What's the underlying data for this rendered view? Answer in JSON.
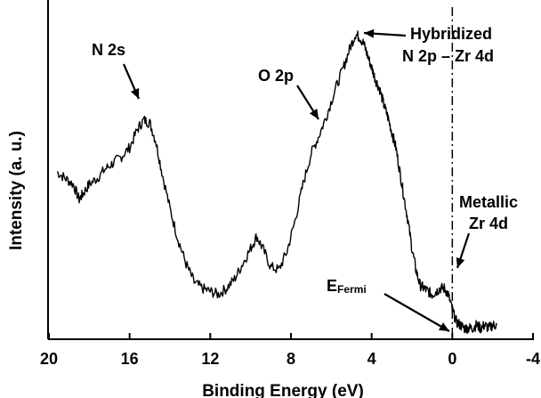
{
  "chart_data": {
    "type": "line",
    "title": "",
    "xlabel": "Binding Energy (eV)",
    "ylabel": "Intensity (a. u.)",
    "xlim": [
      20,
      -4
    ],
    "ylim": [
      0,
      1
    ],
    "x_reversed": true,
    "y_tick_labels": false,
    "xticks": [
      20,
      16,
      12,
      8,
      4,
      0,
      -4
    ],
    "xtick_labels": [
      "20",
      "16",
      "12",
      "8",
      "4",
      "0",
      "-4"
    ],
    "grid": false,
    "line_color": "#000000",
    "series": [
      {
        "name": "",
        "x": [
          19.6,
          19.2,
          18.8,
          18.5,
          18.3,
          18.0,
          17.6,
          17.2,
          16.8,
          16.4,
          16.0,
          15.6,
          15.3,
          15.0,
          14.7,
          14.4,
          14.0,
          13.6,
          13.2,
          12.8,
          12.4,
          12.0,
          11.6,
          11.2,
          10.8,
          10.4,
          10.0,
          9.7,
          9.4,
          9.0,
          8.6,
          8.2,
          7.8,
          7.4,
          7.0,
          6.6,
          6.2,
          5.8,
          5.4,
          5.1,
          4.8,
          4.6,
          4.4,
          4.2,
          4.0,
          3.8,
          3.6,
          3.4,
          3.2,
          3.0,
          2.8,
          2.6,
          2.4,
          2.2,
          2.0,
          1.8,
          1.6,
          1.4,
          1.2,
          1.0,
          0.8,
          0.6,
          0.4,
          0.2,
          0.0,
          -0.2,
          -0.4,
          -0.6,
          -0.8,
          -1.0,
          -1.2,
          -1.4,
          -1.6,
          -1.8,
          -2.0,
          -2.2
        ],
        "y": [
          0.52,
          0.5,
          0.48,
          0.43,
          0.45,
          0.48,
          0.5,
          0.53,
          0.55,
          0.57,
          0.6,
          0.66,
          0.69,
          0.68,
          0.62,
          0.52,
          0.4,
          0.3,
          0.22,
          0.16,
          0.14,
          0.13,
          0.12,
          0.14,
          0.17,
          0.22,
          0.27,
          0.31,
          0.27,
          0.21,
          0.2,
          0.26,
          0.36,
          0.48,
          0.58,
          0.64,
          0.71,
          0.79,
          0.86,
          0.92,
          0.97,
          0.96,
          0.94,
          0.9,
          0.86,
          0.82,
          0.79,
          0.74,
          0.7,
          0.65,
          0.6,
          0.52,
          0.44,
          0.36,
          0.27,
          0.2,
          0.15,
          0.14,
          0.13,
          0.12,
          0.13,
          0.14,
          0.14,
          0.12,
          0.07,
          0.03,
          0.02,
          0.01,
          0.01,
          0.01,
          0.02,
          0.01,
          0.02,
          0.01,
          0.02,
          0.02
        ]
      }
    ],
    "annotations": [
      {
        "text": "N 2s",
        "x": 15.1,
        "y": 0.68
      },
      {
        "text": "O 2p",
        "x": 6.6,
        "y": 0.64
      },
      {
        "text": "Hybridized",
        "x": 4.8,
        "y": 0.97
      },
      {
        "text": "N 2p – Zr 4d",
        "x": 4.8,
        "y": 0.97
      },
      {
        "text": "Metallic",
        "x": -0.2,
        "y": 0.19
      },
      {
        "text": "Zr 4d",
        "x": -0.2,
        "y": 0.19
      }
    ],
    "fermi_label_main": "E",
    "fermi_label_sub": "Fermi",
    "fermi_x": 0.0
  }
}
